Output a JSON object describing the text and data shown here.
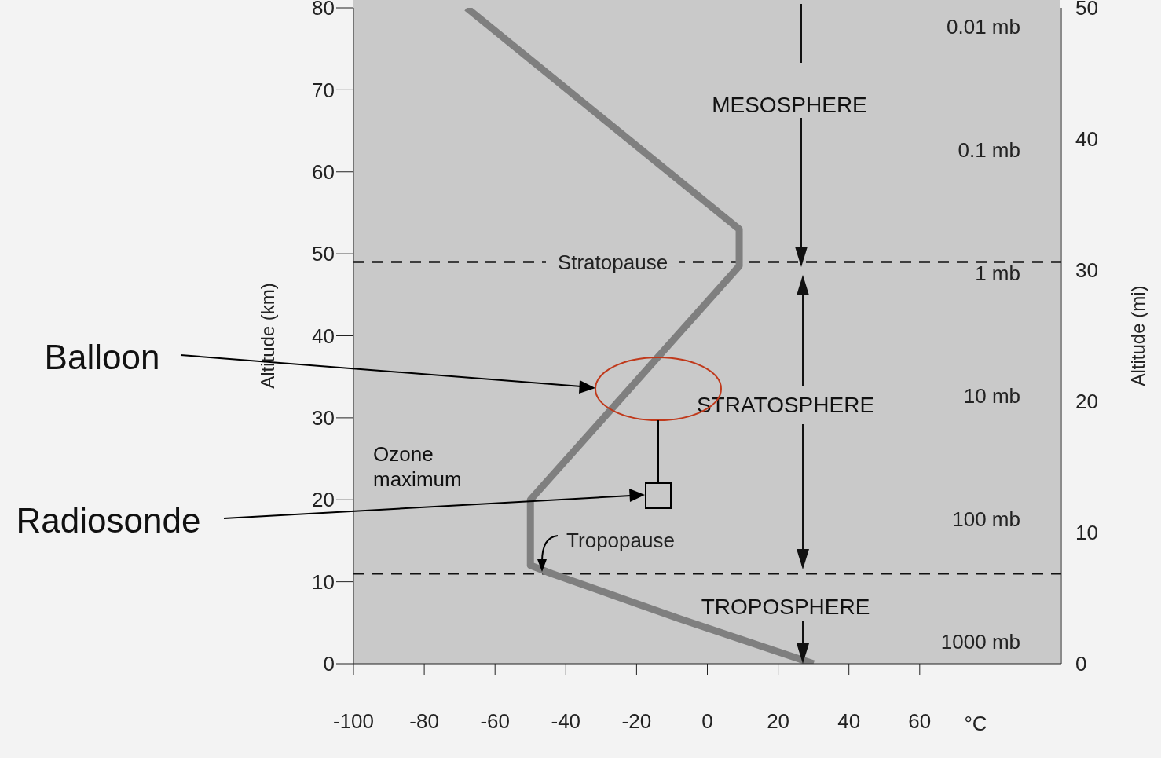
{
  "chart_data": {
    "type": "line",
    "xlabel": "°C",
    "ylabel": "Altitude (km)",
    "y2label": "Altitude (mi)",
    "series": [
      {
        "x": [
          -68,
          9,
          9,
          -50,
          -50,
          -44,
          -8,
          30
        ],
        "values": [
          80,
          53,
          48.5,
          20,
          12,
          11,
          5.5,
          0
        ],
        "color": "#7f7f7f"
      }
    ],
    "xlim": [
      -100,
      100
    ],
    "xticks": [
      -100,
      -80,
      -60,
      -40,
      -20,
      0,
      20,
      40,
      60
    ],
    "ylim": [
      0,
      80
    ],
    "yticks": [
      0,
      10,
      20,
      30,
      40,
      50,
      60,
      70,
      80
    ],
    "y2lim": [
      0,
      50
    ],
    "y2ticks": [
      0,
      10,
      20,
      30,
      40,
      50
    ],
    "y3lim": [
      1500,
      0.007
    ],
    "y3ticks": [
      {
        "value": 1000,
        "label": "1000 mb"
      },
      {
        "value": 100,
        "label": "100 mb"
      },
      {
        "value": 10,
        "label": "10 mb"
      },
      {
        "value": 1,
        "label": "1 mb"
      },
      {
        "value": 0.1,
        "label": "0.1 mb"
      },
      {
        "value": 0.01,
        "label": "0.01 mb"
      }
    ],
    "log": "y3",
    "ref_lines": [
      {
        "axis": "y",
        "value": 49,
        "label": "Stratopause",
        "line_style": "dashed",
        "color": "#111111"
      },
      {
        "axis": "y",
        "value": 11,
        "label": "Tropopause",
        "line_style": "dashed",
        "color": "#111111"
      }
    ],
    "annotations": [
      "MESOSPHERE",
      "STRATOSPHERE",
      "TROPOSPHERE",
      "Ozone maximum",
      "Balloon",
      "Radiosonde"
    ],
    "grid": false,
    "legend": false,
    "marker": "none",
    "line_style": "solid"
  }
}
